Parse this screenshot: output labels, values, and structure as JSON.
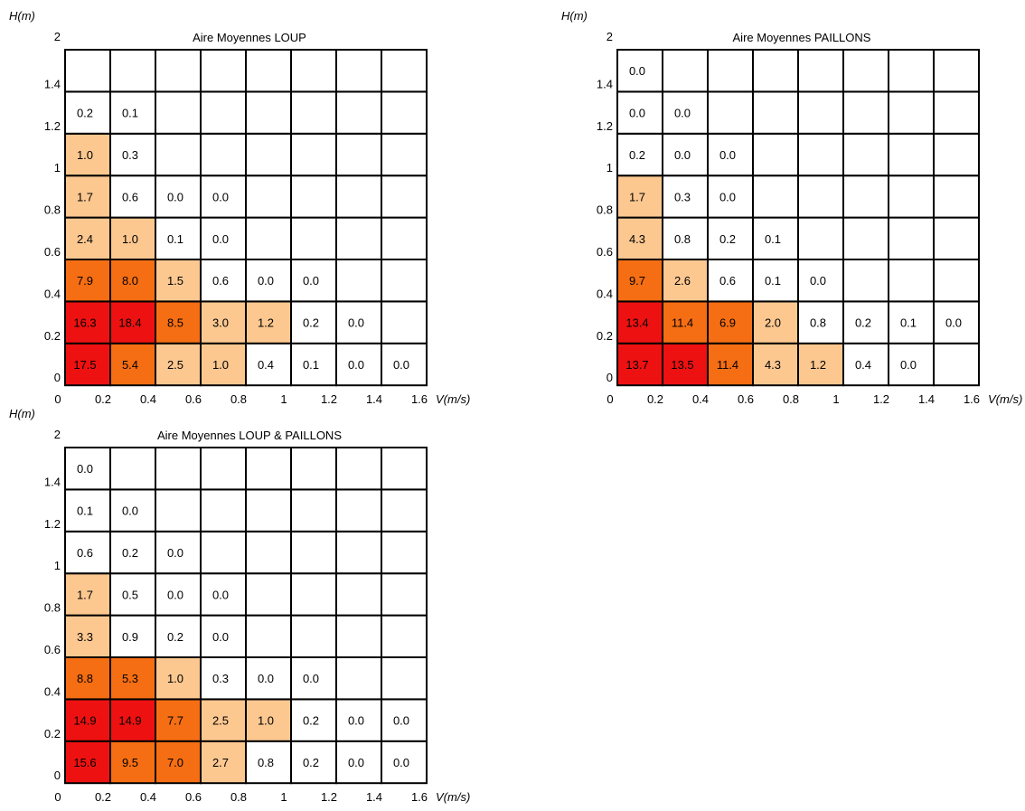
{
  "chart_data": [
    {
      "type": "heatmap",
      "title": "Aire Moyennes LOUP",
      "xlabel": "V(m/s)",
      "ylabel": "H(m)",
      "x_ticks": [
        "0",
        "0.2",
        "0.4",
        "0.6",
        "0.8",
        "1",
        "1.2",
        "1.4",
        "1.6"
      ],
      "y_ticks": [
        "0",
        "0.2",
        "0.4",
        "0.6",
        "0.8",
        "1",
        "1.2",
        "1.4",
        "2"
      ],
      "rows_bottom_to_top": [
        [
          "17.5",
          "5.4",
          "2.5",
          "1.0",
          "0.4",
          "0.1",
          "0.0",
          "0.0"
        ],
        [
          "16.3",
          "18.4",
          "8.5",
          "3.0",
          "1.2",
          "0.2",
          "0.0",
          ""
        ],
        [
          "7.9",
          "8.0",
          "1.5",
          "0.6",
          "0.0",
          "0.0",
          "",
          ""
        ],
        [
          "2.4",
          "1.0",
          "0.1",
          "0.0",
          "",
          "",
          "",
          ""
        ],
        [
          "1.7",
          "0.6",
          "0.0",
          "0.0",
          "",
          "",
          "",
          ""
        ],
        [
          "1.0",
          "0.3",
          "",
          "",
          "",
          "",
          "",
          ""
        ],
        [
          "0.2",
          "0.1",
          "",
          "",
          "",
          "",
          "",
          ""
        ],
        [
          "",
          "",
          "",
          "",
          "",
          "",
          "",
          ""
        ]
      ]
    },
    {
      "type": "heatmap",
      "title": "Aire Moyennes PAILLONS",
      "xlabel": "V(m/s)",
      "ylabel": "H(m)",
      "x_ticks": [
        "0",
        "0.2",
        "0.4",
        "0.6",
        "0.8",
        "1",
        "1.2",
        "1.4",
        "1.6"
      ],
      "y_ticks": [
        "0",
        "0.2",
        "0.4",
        "0.6",
        "0.8",
        "1",
        "1.2",
        "1.4",
        "2"
      ],
      "rows_bottom_to_top": [
        [
          "13.7",
          "13.5",
          "11.4",
          "4.3",
          "1.2",
          "0.4",
          "0.0",
          ""
        ],
        [
          "13.4",
          "11.4",
          "6.9",
          "2.0",
          "0.8",
          "0.2",
          "0.1",
          "0.0"
        ],
        [
          "9.7",
          "2.6",
          "0.6",
          "0.1",
          "0.0",
          "",
          "",
          ""
        ],
        [
          "4.3",
          "0.8",
          "0.2",
          "0.1",
          "",
          "",
          "",
          ""
        ],
        [
          "1.7",
          "0.3",
          "0.0",
          "",
          "",
          "",
          "",
          ""
        ],
        [
          "0.2",
          "0.0",
          "0.0",
          "",
          "",
          "",
          "",
          ""
        ],
        [
          "0.0",
          "0.0",
          "",
          "",
          "",
          "",
          "",
          ""
        ],
        [
          "0.0",
          "",
          "",
          "",
          "",
          "",
          "",
          ""
        ]
      ]
    },
    {
      "type": "heatmap",
      "title": "Aire Moyennes LOUP & PAILLONS",
      "xlabel": "V(m/s)",
      "ylabel": "H(m)",
      "x_ticks": [
        "0",
        "0.2",
        "0.4",
        "0.6",
        "0.8",
        "1",
        "1.2",
        "1.4",
        "1.6"
      ],
      "y_ticks": [
        "0",
        "0.2",
        "0.4",
        "0.6",
        "0.8",
        "1",
        "1.2",
        "1.4",
        "2"
      ],
      "rows_bottom_to_top": [
        [
          "15.6",
          "9.5",
          "7.0",
          "2.7",
          "0.8",
          "0.2",
          "0.0",
          "0.0"
        ],
        [
          "14.9",
          "14.9",
          "7.7",
          "2.5",
          "1.0",
          "0.2",
          "0.0",
          "0.0"
        ],
        [
          "8.8",
          "5.3",
          "1.0",
          "0.3",
          "0.0",
          "0.0",
          "",
          ""
        ],
        [
          "3.3",
          "0.9",
          "0.2",
          "0.0",
          "",
          "",
          "",
          ""
        ],
        [
          "1.7",
          "0.5",
          "0.0",
          "0.0",
          "",
          "",
          "",
          ""
        ],
        [
          "0.6",
          "0.2",
          "0.0",
          "",
          "",
          "",
          "",
          ""
        ],
        [
          "0.1",
          "0.0",
          "",
          "",
          "",
          "",
          "",
          ""
        ],
        [
          "0.0",
          "",
          "",
          "",
          "",
          "",
          "",
          ""
        ]
      ]
    }
  ],
  "color_scale": {
    "thresholds": [
      1,
      5,
      12
    ],
    "colors": [
      "#ffffff",
      "#fcc890",
      "#f66e13",
      "#ee1111"
    ],
    "text_colors": [
      "#000000",
      "#000000",
      "#000000",
      "#000000"
    ]
  }
}
